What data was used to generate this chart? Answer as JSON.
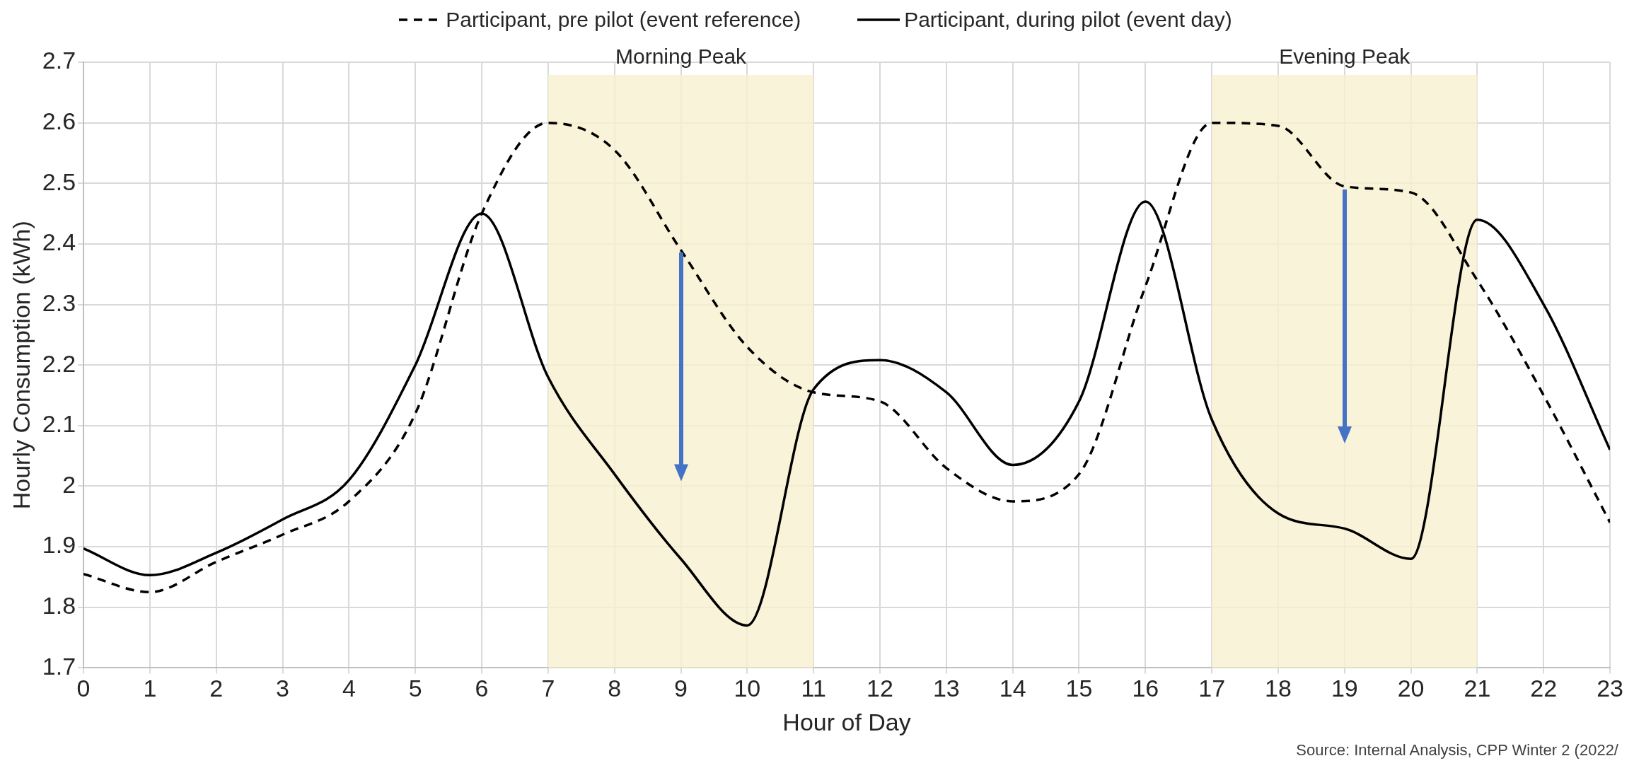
{
  "chart_data": {
    "type": "line",
    "xlabel": "Hour of Day",
    "ylabel": "Hourly Consumption (kWh)",
    "x": [
      0,
      1,
      2,
      3,
      4,
      5,
      6,
      7,
      8,
      9,
      10,
      11,
      12,
      13,
      14,
      15,
      16,
      17,
      18,
      19,
      20,
      21,
      22,
      23
    ],
    "series": [
      {
        "name": "Participant, pre pilot (event reference)",
        "color": "#000000",
        "line_style": "dashed",
        "values": [
          1.855,
          1.825,
          1.875,
          1.92,
          1.975,
          2.12,
          2.45,
          2.6,
          2.555,
          2.39,
          2.23,
          2.155,
          2.14,
          2.03,
          1.975,
          2.02,
          2.33,
          2.6,
          2.595,
          2.495,
          2.485,
          2.34,
          2.15,
          1.94
        ]
      },
      {
        "name": "Participant, during pilot (event day)",
        "color": "#000000",
        "line_style": "solid",
        "values": [
          1.897,
          1.853,
          1.89,
          1.945,
          2.01,
          2.2,
          2.45,
          2.18,
          2.02,
          1.88,
          1.77,
          2.16,
          2.208,
          2.155,
          2.035,
          2.14,
          2.47,
          2.11,
          1.955,
          1.93,
          1.88,
          2.44,
          2.3,
          2.06
        ]
      }
    ],
    "xlim": [
      0,
      23
    ],
    "xticks": [
      0,
      1,
      2,
      3,
      4,
      5,
      6,
      7,
      8,
      9,
      10,
      11,
      12,
      13,
      14,
      15,
      16,
      17,
      18,
      19,
      20,
      21,
      22,
      23
    ],
    "ylim": [
      1.7,
      2.7
    ],
    "yticks": [
      1.7,
      1.8,
      1.9,
      2,
      2.1,
      2.2,
      2.3,
      2.4,
      2.5,
      2.6,
      2.7
    ],
    "bands": [
      {
        "axis": "x",
        "from": 7,
        "to": 11,
        "label": "Morning Peak",
        "color": "#f8f0cf"
      },
      {
        "axis": "x",
        "from": 17,
        "to": 21,
        "label": "Evening Peak",
        "color": "#f8f0cf"
      }
    ],
    "annotations": [
      "Source: Internal Analysis, CPP Winter 2 (2022/"
    ],
    "grid": true,
    "legend": "top",
    "marker": "none"
  }
}
